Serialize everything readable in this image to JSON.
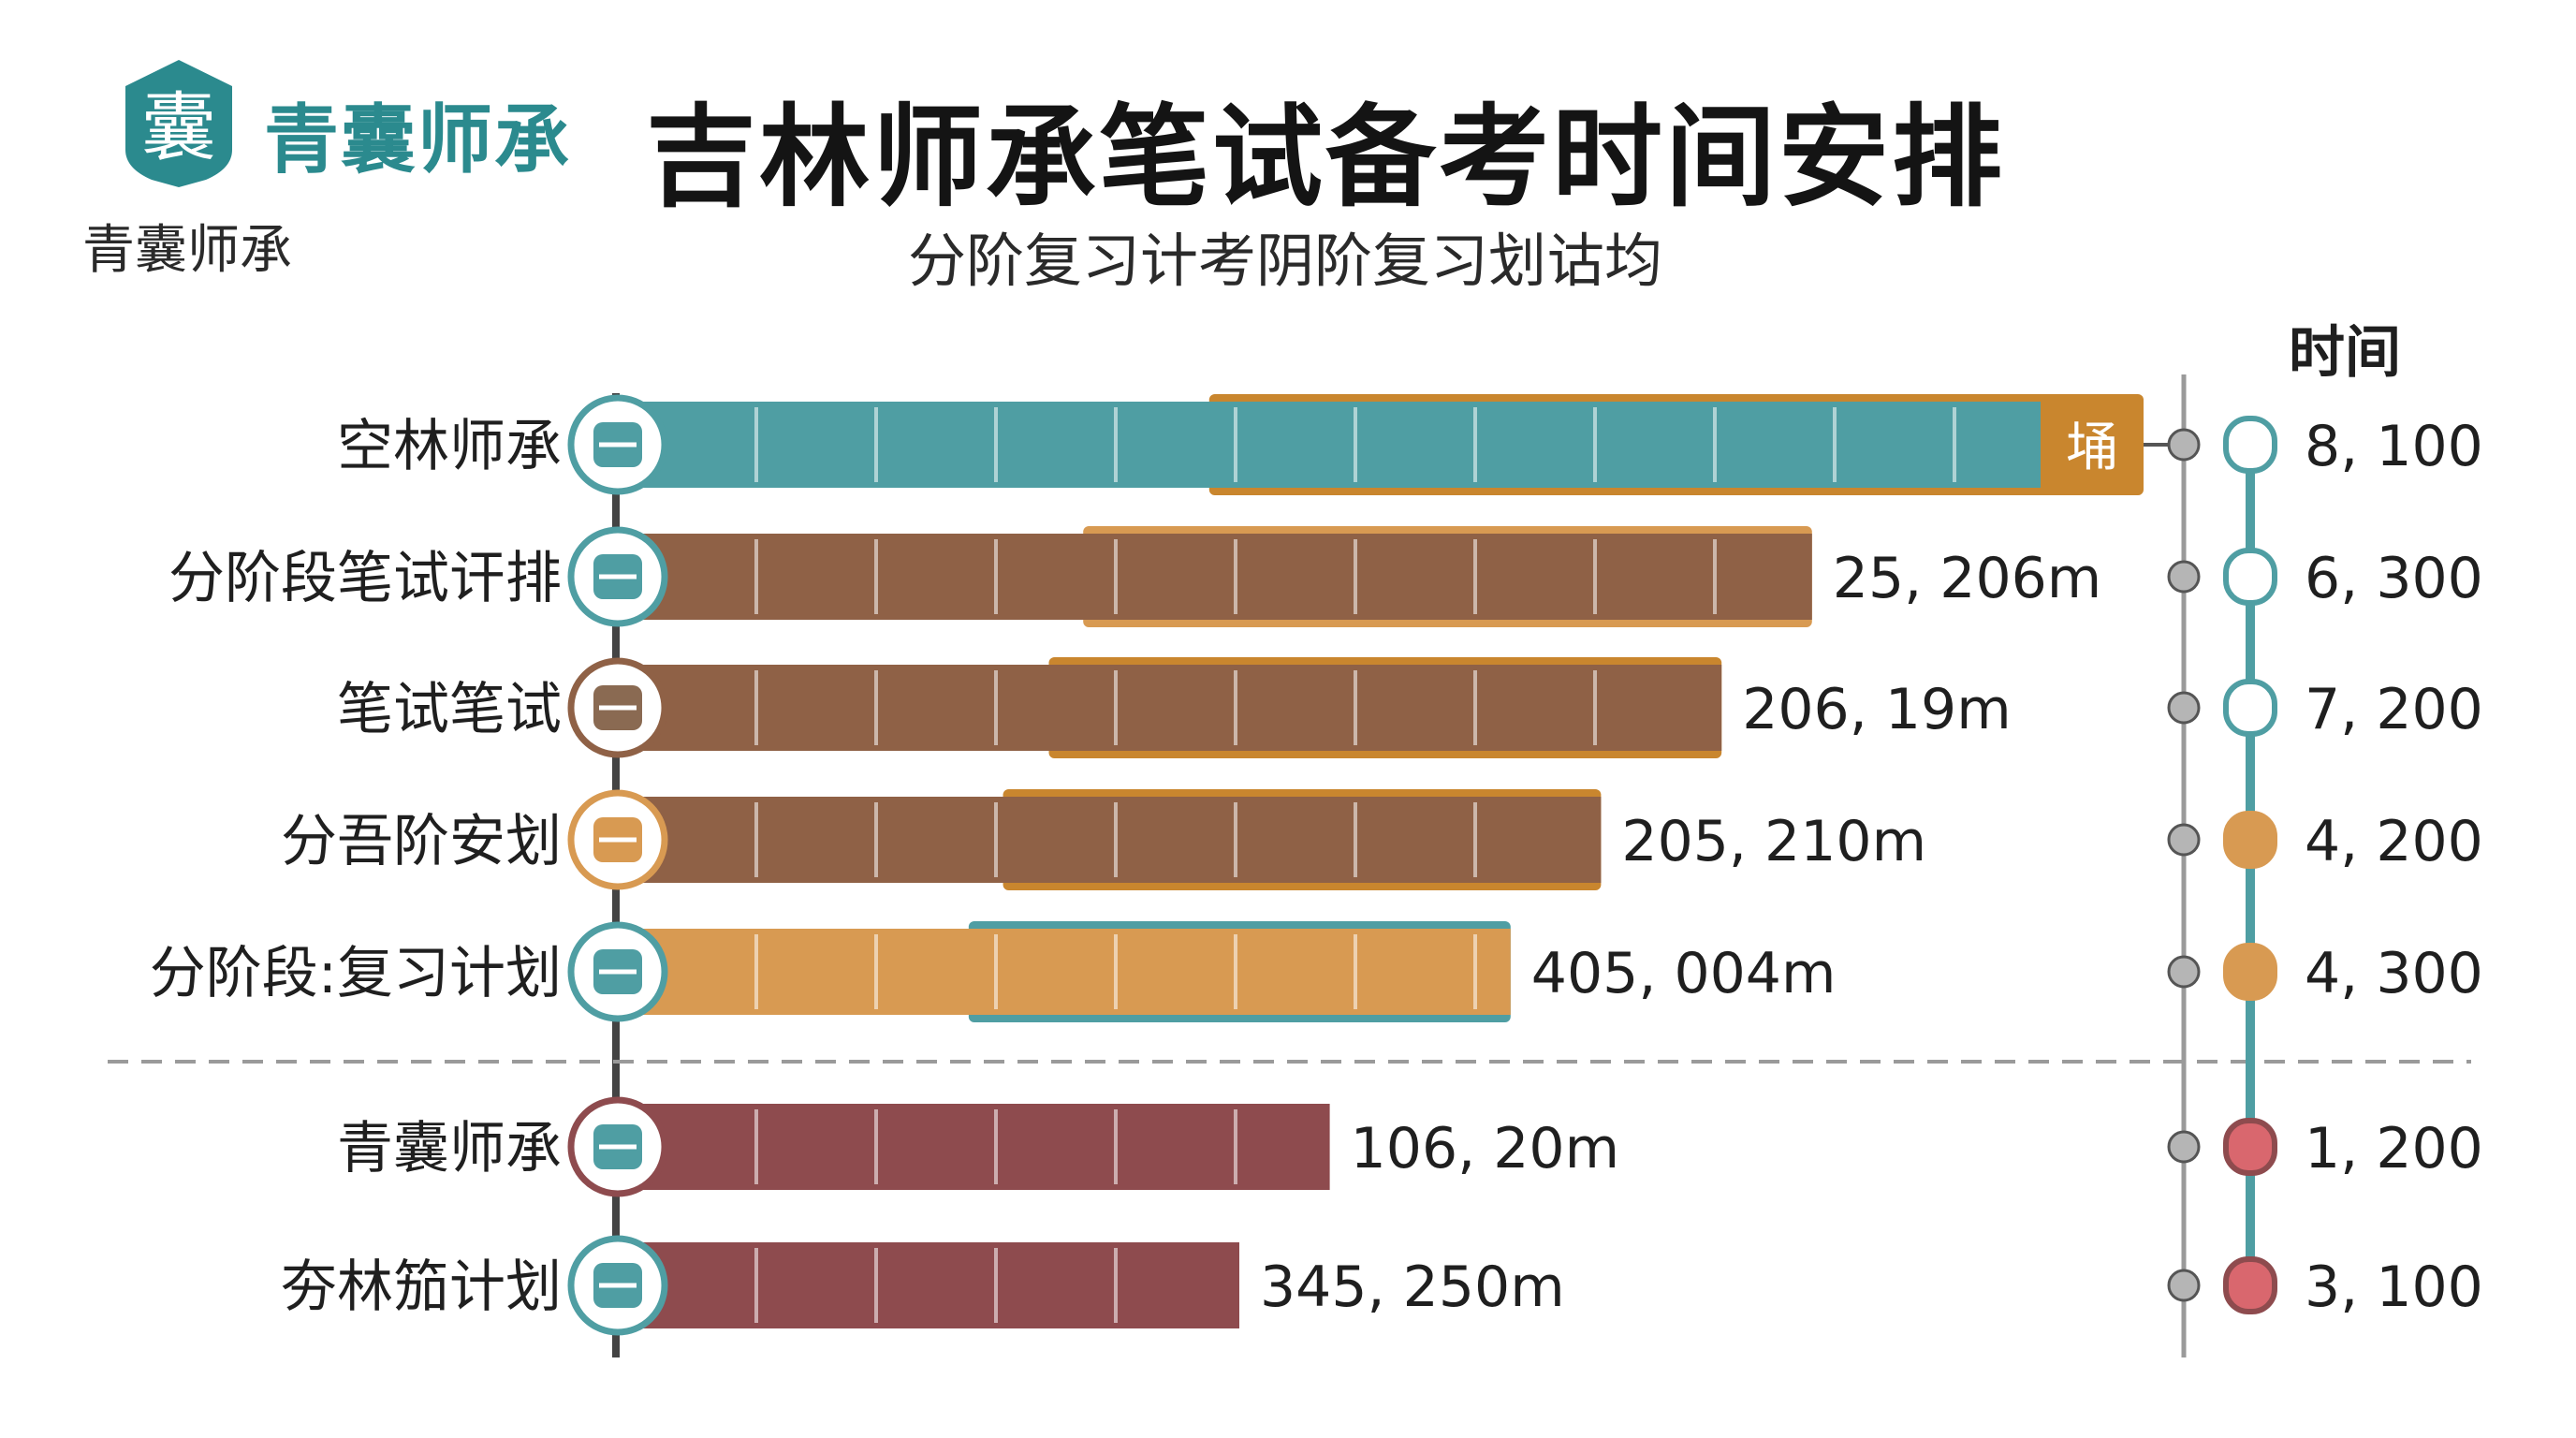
{
  "header": {
    "brand": "青囊师承",
    "brand_sub": "青囊师承",
    "title": "吉林师承笔试备考时间安排",
    "subtitle": "分阶复习计考阴阶复习划诂均",
    "column_header": "时间"
  },
  "colors": {
    "teal": "#4f9ea3",
    "brown": "#8f6146",
    "orange": "#d89a52",
    "gold": "#c9862e",
    "red": "#8e4b4e",
    "pink": "#d9676e",
    "grey": "#9a9a9a"
  },
  "chart_data": {
    "type": "bar",
    "categories": [
      "空林师承",
      "分阶段笔试讦排",
      "笔试笔试",
      "分吾阶安划",
      "分阶段:复习计划",
      "青囊师承",
      "夯林笳计划"
    ],
    "values": [
      100,
      78,
      72,
      64,
      58,
      46,
      40
    ],
    "value_labels": [
      "",
      "25, 206m",
      "206, 19m",
      "205, 210m",
      "405, 004m",
      "106, 20m",
      "345, 250m"
    ],
    "end_tag": "埇",
    "right_values": [
      "8, 100",
      "6, 300",
      "7, 200",
      "4, 200",
      "4, 300",
      "1, 200",
      "3, 100"
    ],
    "groups": [
      "main",
      "main",
      "main",
      "main",
      "main",
      "secondary",
      "secondary"
    ]
  }
}
